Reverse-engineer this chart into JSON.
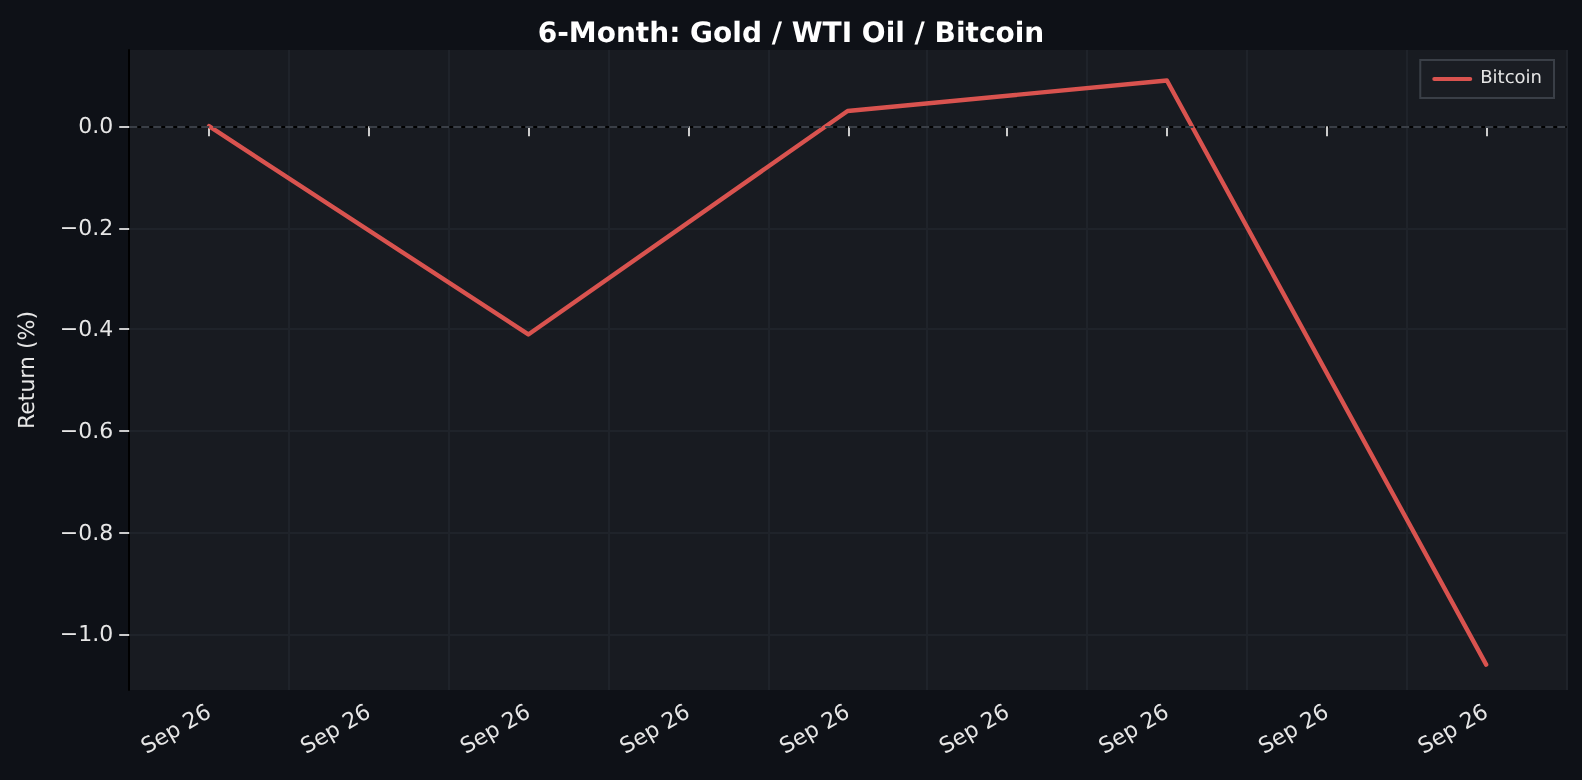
{
  "chart_data": {
    "type": "line",
    "title": "6-Month: Gold / WTI Oil / Bitcoin",
    "ylabel": "Return (%)",
    "categories": [
      "Sep 26",
      "Sep 26",
      "Sep 26",
      "Sep 26",
      "Sep 26",
      "Sep 26",
      "Sep 26",
      "Sep 26",
      "Sep 26"
    ],
    "series": [
      {
        "name": "Bitcoin",
        "color": "#d9534f",
        "values": [
          0,
          null,
          -0.41,
          null,
          0.03,
          null,
          0.09,
          null,
          -1.06
        ]
      }
    ],
    "ylim": [
      -1.11,
      0.15
    ],
    "yticks": [
      {
        "value": -1.0,
        "label": "−1.0"
      },
      {
        "value": -0.8,
        "label": "−0.8"
      },
      {
        "value": -0.6,
        "label": "−0.6"
      },
      {
        "value": -0.4,
        "label": "−0.4"
      },
      {
        "value": -0.2,
        "label": "−0.2"
      },
      {
        "value": 0,
        "label": "0.0"
      }
    ],
    "ref_lines": [
      {
        "axis": "y",
        "value": 0,
        "line_style": "dashed",
        "color": "#3a3f47"
      }
    ],
    "grid": true,
    "legend": "top right",
    "marker": "none",
    "line_style": "solid"
  }
}
